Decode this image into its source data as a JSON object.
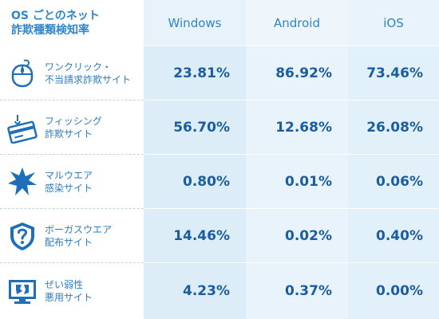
{
  "chart_data": {
    "type": "table",
    "title_line1": "OS ごとのネット",
    "title_line2": "詐欺種類検知率",
    "columns": [
      "Windows",
      "Android",
      "iOS"
    ],
    "rows": [
      {
        "label_line1": "ワンクリック・",
        "label_line2": "不当請求詐欺サイト",
        "icon": "mouse-icon",
        "values": [
          "23.81%",
          "86.92%",
          "73.46%"
        ]
      },
      {
        "label_line1": "フィッシング",
        "label_line2": "詐欺サイト",
        "icon": "credit-card-icon",
        "values": [
          "56.70%",
          "12.68%",
          "26.08%"
        ]
      },
      {
        "label_line1": "マルウエア",
        "label_line2": "感染サイト",
        "icon": "malware-burst-icon",
        "values": [
          "0.80%",
          "0.01%",
          "0.06%"
        ]
      },
      {
        "label_line1": "ボーガスウエア",
        "label_line2": "配布サイト",
        "icon": "question-shield-icon",
        "values": [
          "14.46%",
          "0.02%",
          "0.40%"
        ]
      },
      {
        "label_line1": "ぜい弱性",
        "label_line2": "悪用サイト",
        "icon": "broken-monitor-icon",
        "values": [
          "4.23%",
          "0.37%",
          "0.00%"
        ]
      }
    ]
  },
  "colors": {
    "text_dark": "#1b5d9e",
    "text_light": "#2f85c8",
    "cell_bg": "#dcedf8"
  }
}
